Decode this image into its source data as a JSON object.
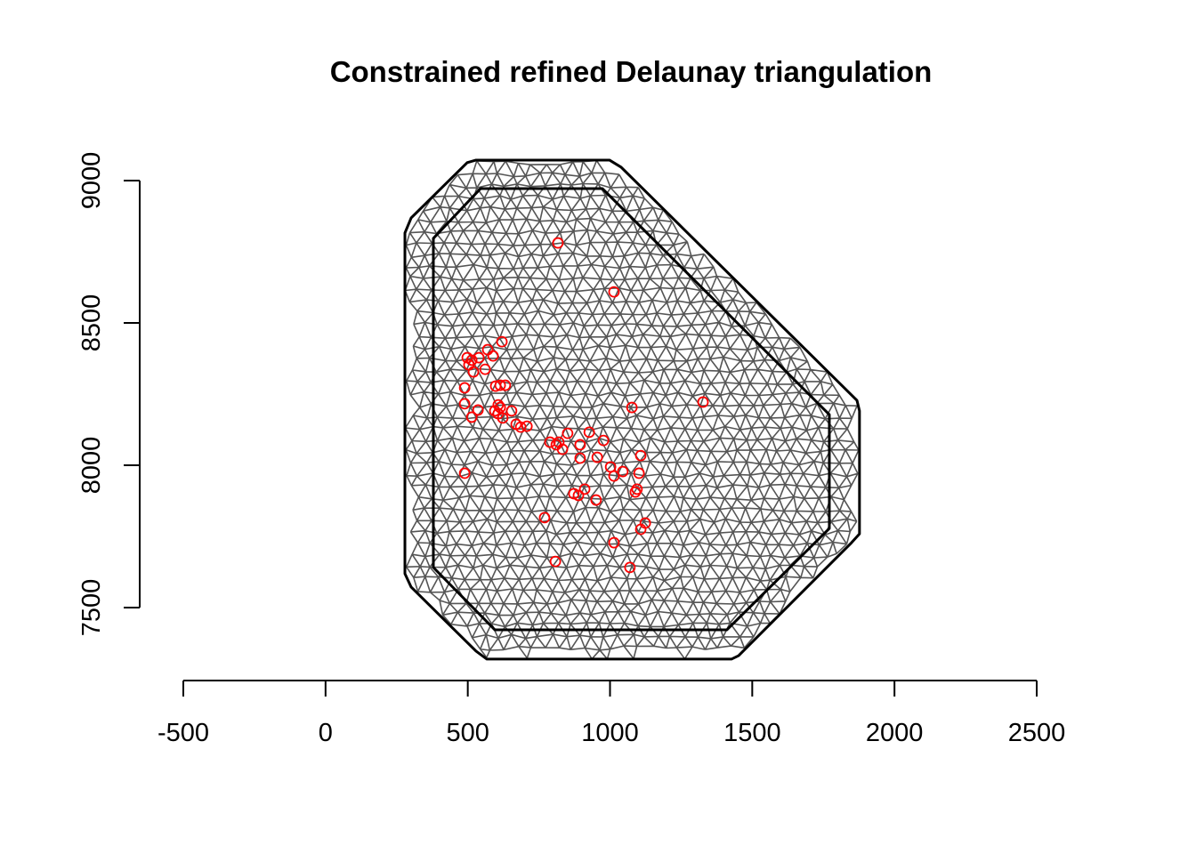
{
  "chart_data": {
    "type": "scatter",
    "title": "Constrained refined Delaunay triangulation",
    "xlabel": "",
    "ylabel": "",
    "xlim": [
      -500,
      2500
    ],
    "ylim": [
      7500,
      9000
    ],
    "x_ticks": [
      -500,
      0,
      500,
      1000,
      1500,
      2000,
      2500
    ],
    "y_ticks": [
      7500,
      8000,
      8500,
      9000
    ],
    "x_tick_labels": [
      "-500",
      "0",
      "500",
      "1000",
      "1500",
      "2000",
      "2500"
    ],
    "y_tick_labels": [
      "7500",
      "8000",
      "8500",
      "9000"
    ],
    "grid": false,
    "colors": {
      "points": "#ff0000",
      "mesh": "#555555",
      "boundary": "#000000"
    },
    "outer_boundary": [
      [
        529,
        9072
      ],
      [
        998,
        9072
      ],
      [
        1039,
        9047
      ],
      [
        1868,
        8228
      ],
      [
        1877,
        8191
      ],
      [
        1877,
        7759
      ],
      [
        1849,
        7728
      ],
      [
        1452,
        7331
      ],
      [
        1427,
        7319
      ],
      [
        567,
        7319
      ],
      [
        529,
        7347
      ],
      [
        301,
        7572
      ],
      [
        279,
        7619
      ],
      [
        279,
        8816
      ],
      [
        301,
        8869
      ],
      [
        498,
        9063
      ]
    ],
    "inner_boundary": [
      [
        545,
        8972
      ],
      [
        973,
        8972
      ],
      [
        1771,
        8178
      ],
      [
        1771,
        7778
      ],
      [
        1411,
        7422
      ],
      [
        595,
        7422
      ],
      [
        379,
        7641
      ],
      [
        379,
        8797
      ]
    ],
    "points": [
      [
        817,
        8781
      ],
      [
        1014,
        8609
      ],
      [
        620,
        8434
      ],
      [
        570,
        8406
      ],
      [
        589,
        8384
      ],
      [
        498,
        8378
      ],
      [
        514,
        8369
      ],
      [
        539,
        8378
      ],
      [
        504,
        8353
      ],
      [
        561,
        8337
      ],
      [
        520,
        8328
      ],
      [
        489,
        8272
      ],
      [
        598,
        8278
      ],
      [
        632,
        8281
      ],
      [
        614,
        8281
      ],
      [
        489,
        8216
      ],
      [
        536,
        8194
      ],
      [
        514,
        8169
      ],
      [
        595,
        8191
      ],
      [
        614,
        8203
      ],
      [
        607,
        8181
      ],
      [
        623,
        8166
      ],
      [
        654,
        8191
      ],
      [
        670,
        8144
      ],
      [
        686,
        8134
      ],
      [
        708,
        8137
      ],
      [
        607,
        8212
      ],
      [
        1077,
        8203
      ],
      [
        1327,
        8222
      ],
      [
        851,
        8112
      ],
      [
        927,
        8116
      ],
      [
        977,
        8087
      ],
      [
        789,
        8081
      ],
      [
        811,
        8072
      ],
      [
        833,
        8056
      ],
      [
        895,
        8072
      ],
      [
        895,
        8025
      ],
      [
        820,
        8081
      ],
      [
        955,
        8028
      ],
      [
        1002,
        7994
      ],
      [
        1014,
        7962
      ],
      [
        1045,
        7978
      ],
      [
        1108,
        8034
      ],
      [
        1102,
        7972
      ],
      [
        1089,
        7906
      ],
      [
        1095,
        7916
      ],
      [
        873,
        7900
      ],
      [
        889,
        7894
      ],
      [
        911,
        7916
      ],
      [
        951,
        7878
      ],
      [
        770,
        7816
      ],
      [
        1124,
        7797
      ],
      [
        1108,
        7775
      ],
      [
        1014,
        7728
      ],
      [
        808,
        7662
      ],
      [
        1070,
        7641
      ],
      [
        489,
        7972
      ]
    ]
  }
}
